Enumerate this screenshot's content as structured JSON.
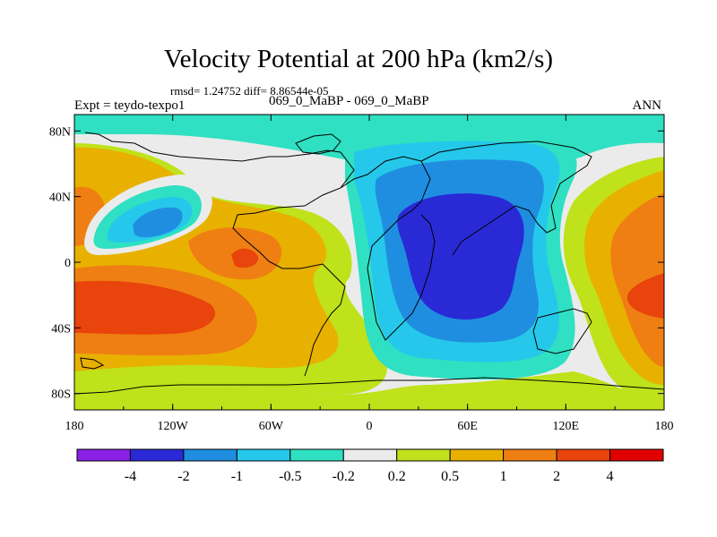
{
  "header": {
    "title": "Velocity Potential at 200 hPa (km2/s)",
    "stats": "rmsd= 1.24752 diff= 8.86544e-05",
    "left_label": "Expt = teydo-texpo1",
    "center_label": "069_0_MaBP - 069_0_MaBP",
    "right_label": "ANN"
  },
  "chart_data": {
    "type": "filled-contour-map",
    "title": "Velocity Potential at 200 hPa (km2/s)",
    "variable": "Velocity Potential",
    "units": "km2/s",
    "level": "200 hPa",
    "x_ticks": [
      "180",
      "120W",
      "60W",
      "0",
      "60E",
      "120E",
      "180"
    ],
    "y_ticks": [
      "80N",
      "40N",
      "0",
      "40S",
      "80S"
    ],
    "xlim": [
      -180,
      180
    ],
    "ylim": [
      -90,
      90
    ],
    "colorbar": {
      "labels": [
        "-4",
        "-2",
        "-1",
        "-0.5",
        "-0.2",
        "0.2",
        "0.5",
        "1",
        "2",
        "4"
      ],
      "colors": [
        "#8a1fe6",
        "#2929d6",
        "#1f8ee0",
        "#25c8ea",
        "#2fe0c2",
        "#ebebeb",
        "#bfe21a",
        "#e8b100",
        "#ef7f12",
        "#e8440c",
        "#e00000"
      ]
    },
    "features": [
      {
        "region": "Indian Ocean / Maritime Continent",
        "level": "< -2"
      },
      {
        "region": "North Pacific",
        "level": "-1"
      },
      {
        "region": "Eastern Pacific, tropics",
        "level": "2 to 4"
      },
      {
        "region": "Western Pacific, south",
        "level": "2 to 4"
      },
      {
        "region": "Americas",
        "level": "2"
      }
    ]
  }
}
